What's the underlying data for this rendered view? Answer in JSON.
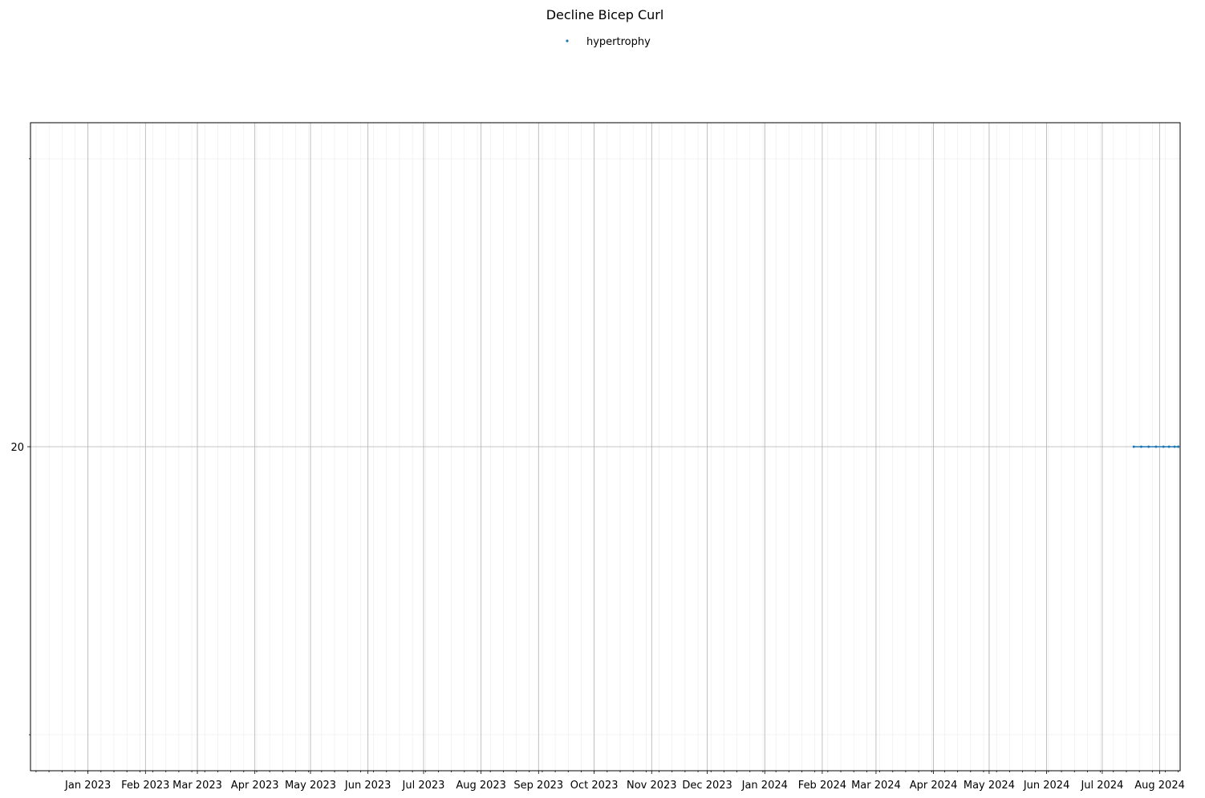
{
  "chart_data": {
    "type": "line",
    "title": "Decline Bicep Curl",
    "xlabel": "",
    "ylabel": "",
    "x_axis_type": "date",
    "xlim": [
      "2022-12-01",
      "2024-08-12"
    ],
    "ylim": [
      19.955,
      20.045
    ],
    "x_tick_labels": [
      "Jan 2023",
      "Feb 2023",
      "Mar 2023",
      "Apr 2023",
      "May 2023",
      "Jun 2023",
      "Jul 2023",
      "Aug 2023",
      "Sep 2023",
      "Oct 2023",
      "Nov 2023",
      "Dec 2023",
      "Jan 2024",
      "Feb 2024",
      "Mar 2024",
      "Apr 2024",
      "May 2024",
      "Jun 2024",
      "Jul 2024",
      "Aug 2024"
    ],
    "x_tick_dates": [
      "2023-01-01",
      "2023-02-01",
      "2023-03-01",
      "2023-04-01",
      "2023-05-01",
      "2023-06-01",
      "2023-07-01",
      "2023-08-01",
      "2023-09-01",
      "2023-10-01",
      "2023-11-01",
      "2023-12-01",
      "2024-01-01",
      "2024-02-01",
      "2024-03-01",
      "2024-04-01",
      "2024-05-01",
      "2024-06-01",
      "2024-07-01",
      "2024-08-01"
    ],
    "y_tick_labels": [
      "20"
    ],
    "y_tick_values": [
      20
    ],
    "grid": true,
    "minor_grid": true,
    "legend_position": "top-center",
    "series": [
      {
        "name": "hypertrophy",
        "color": "#1f77b4",
        "x": [
          "2024-07-18",
          "2024-07-22",
          "2024-07-26",
          "2024-07-30",
          "2024-08-03",
          "2024-08-06",
          "2024-08-09",
          "2024-08-11"
        ],
        "y": [
          20,
          20,
          20,
          20,
          20,
          20,
          20,
          20
        ]
      }
    ]
  }
}
